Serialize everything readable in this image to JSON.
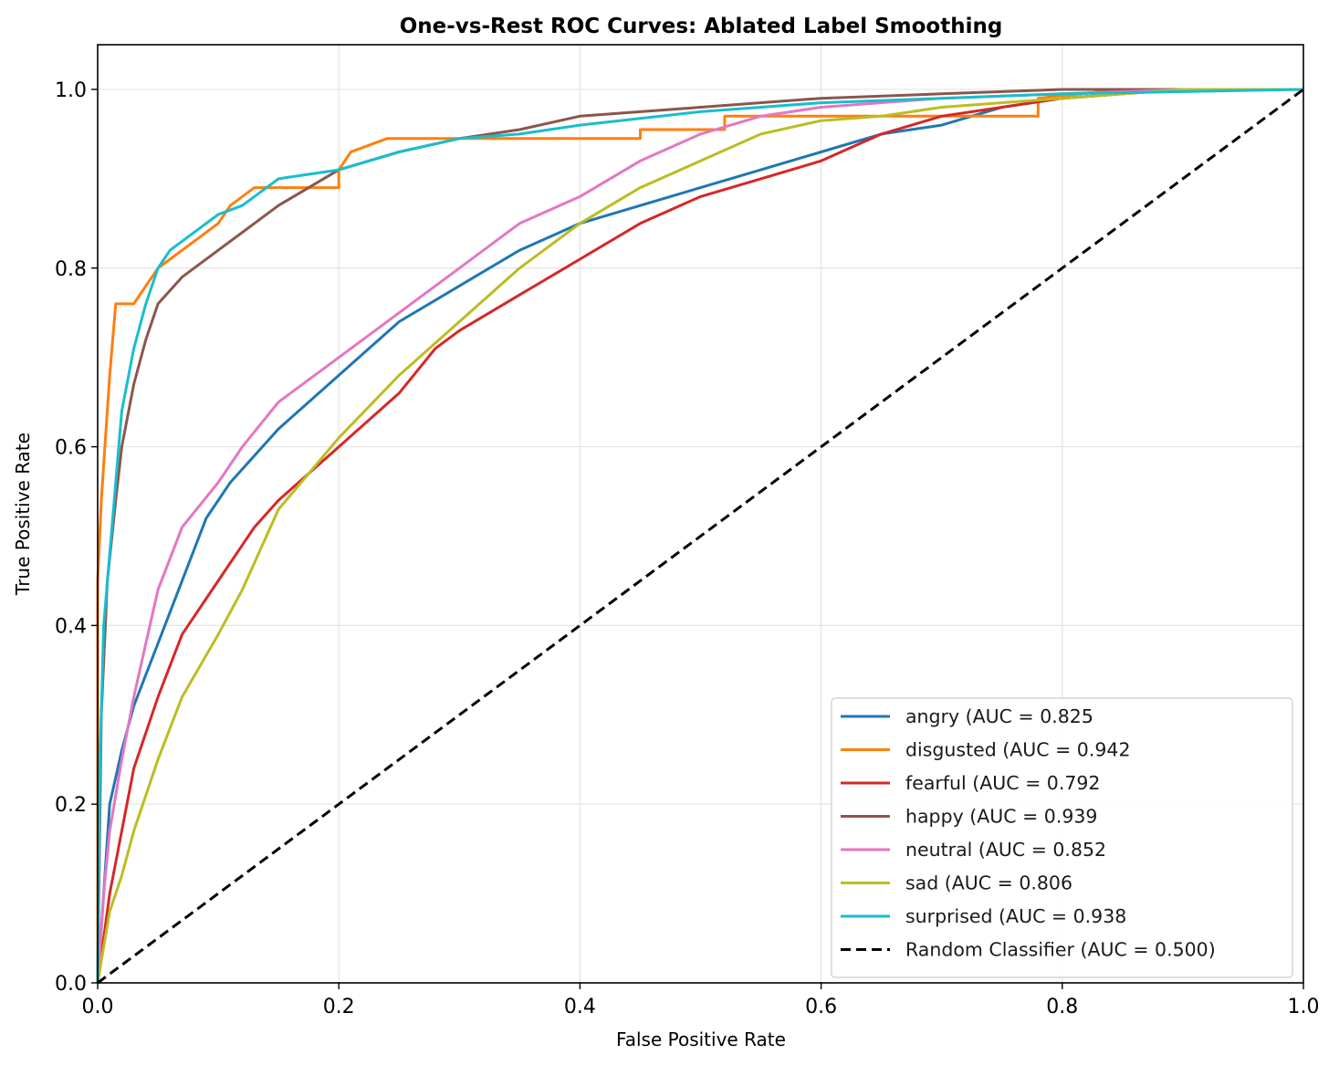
{
  "chart_data": {
    "type": "line",
    "title": "One-vs-Rest ROC Curves: Ablated Label Smoothing",
    "xlabel": "False Positive Rate",
    "ylabel": "True Positive Rate",
    "xlim": [
      0.0,
      1.0
    ],
    "ylim": [
      0.0,
      1.05
    ],
    "xticks": [
      "0.0",
      "0.2",
      "0.4",
      "0.6",
      "0.8",
      "1.0"
    ],
    "yticks": [
      "0.0",
      "0.2",
      "0.4",
      "0.6",
      "0.8",
      "1.0"
    ],
    "grid": true,
    "legend_position": "lower-right",
    "series": [
      {
        "name": "angry (AUC = 0.825",
        "color": "#1f77b4",
        "x": [
          0,
          0.005,
          0.01,
          0.02,
          0.03,
          0.05,
          0.07,
          0.09,
          0.11,
          0.13,
          0.15,
          0.2,
          0.25,
          0.3,
          0.35,
          0.4,
          0.45,
          0.5,
          0.55,
          0.6,
          0.65,
          0.7,
          0.75,
          0.8,
          0.85,
          0.9,
          1.0
        ],
        "y": [
          0,
          0.1,
          0.2,
          0.26,
          0.31,
          0.38,
          0.45,
          0.52,
          0.56,
          0.59,
          0.62,
          0.68,
          0.74,
          0.78,
          0.82,
          0.85,
          0.87,
          0.89,
          0.91,
          0.93,
          0.95,
          0.96,
          0.98,
          0.99,
          0.995,
          1.0,
          1.0
        ]
      },
      {
        "name": "disgusted (AUC = 0.942",
        "color": "#ff7f0e",
        "x": [
          0,
          0.0,
          0.003,
          0.006,
          0.01,
          0.015,
          0.03,
          0.035,
          0.04,
          0.05,
          0.06,
          0.07,
          0.08,
          0.09,
          0.1,
          0.11,
          0.12,
          0.13,
          0.2,
          0.2,
          0.21,
          0.24,
          0.3,
          0.45,
          0.45,
          0.52,
          0.52,
          0.65,
          0.72,
          0.78,
          0.78,
          0.85,
          1.0
        ],
        "y": [
          0,
          0.45,
          0.54,
          0.6,
          0.68,
          0.76,
          0.76,
          0.77,
          0.78,
          0.8,
          0.81,
          0.82,
          0.83,
          0.84,
          0.85,
          0.87,
          0.88,
          0.89,
          0.89,
          0.91,
          0.93,
          0.945,
          0.945,
          0.945,
          0.955,
          0.955,
          0.97,
          0.97,
          0.97,
          0.97,
          0.99,
          1.0,
          1.0
        ]
      },
      {
        "name": "fearful (AUC = 0.792",
        "color": "#d62728",
        "x": [
          0,
          0.005,
          0.01,
          0.02,
          0.03,
          0.05,
          0.07,
          0.1,
          0.13,
          0.15,
          0.2,
          0.25,
          0.28,
          0.3,
          0.35,
          0.4,
          0.45,
          0.5,
          0.55,
          0.6,
          0.65,
          0.7,
          0.75,
          0.8,
          0.85,
          0.9,
          1.0
        ],
        "y": [
          0,
          0.05,
          0.1,
          0.17,
          0.24,
          0.32,
          0.39,
          0.45,
          0.51,
          0.54,
          0.6,
          0.66,
          0.71,
          0.73,
          0.77,
          0.81,
          0.85,
          0.88,
          0.9,
          0.92,
          0.95,
          0.97,
          0.98,
          0.99,
          0.995,
          1.0,
          1.0
        ]
      },
      {
        "name": "happy (AUC = 0.939",
        "color": "#8c564b",
        "x": [
          0,
          0.003,
          0.008,
          0.015,
          0.02,
          0.03,
          0.04,
          0.05,
          0.07,
          0.1,
          0.13,
          0.15,
          0.2,
          0.25,
          0.3,
          0.35,
          0.4,
          0.5,
          0.6,
          0.7,
          0.8,
          1.0
        ],
        "y": [
          0,
          0.3,
          0.45,
          0.54,
          0.6,
          0.67,
          0.72,
          0.76,
          0.79,
          0.82,
          0.85,
          0.87,
          0.91,
          0.93,
          0.945,
          0.955,
          0.97,
          0.98,
          0.99,
          0.995,
          1.0,
          1.0
        ]
      },
      {
        "name": "neutral (AUC = 0.852",
        "color": "#e377c2",
        "x": [
          0,
          0.005,
          0.01,
          0.02,
          0.03,
          0.04,
          0.05,
          0.07,
          0.1,
          0.12,
          0.15,
          0.2,
          0.25,
          0.3,
          0.35,
          0.4,
          0.45,
          0.5,
          0.55,
          0.6,
          0.7,
          0.8,
          0.9,
          1.0
        ],
        "y": [
          0,
          0.1,
          0.17,
          0.25,
          0.32,
          0.38,
          0.44,
          0.51,
          0.56,
          0.6,
          0.65,
          0.7,
          0.75,
          0.8,
          0.85,
          0.88,
          0.92,
          0.95,
          0.97,
          0.98,
          0.99,
          0.995,
          1.0,
          1.0
        ]
      },
      {
        "name": "sad (AUC = 0.806",
        "color": "#bcbd22",
        "x": [
          0,
          0.005,
          0.01,
          0.02,
          0.03,
          0.05,
          0.07,
          0.1,
          0.12,
          0.14,
          0.15,
          0.2,
          0.25,
          0.3,
          0.35,
          0.4,
          0.45,
          0.5,
          0.55,
          0.6,
          0.65,
          0.7,
          0.8,
          0.9,
          1.0
        ],
        "y": [
          0,
          0.04,
          0.08,
          0.12,
          0.17,
          0.25,
          0.32,
          0.39,
          0.44,
          0.5,
          0.53,
          0.61,
          0.68,
          0.74,
          0.8,
          0.85,
          0.89,
          0.92,
          0.95,
          0.965,
          0.97,
          0.98,
          0.99,
          1.0,
          1.0
        ]
      },
      {
        "name": "surprised (AUC = 0.938",
        "color": "#17becf",
        "x": [
          0,
          0.002,
          0.005,
          0.01,
          0.015,
          0.02,
          0.03,
          0.04,
          0.05,
          0.06,
          0.08,
          0.1,
          0.12,
          0.15,
          0.2,
          0.25,
          0.3,
          0.35,
          0.4,
          0.5,
          0.6,
          0.7,
          0.8,
          1.0
        ],
        "y": [
          0,
          0.25,
          0.4,
          0.48,
          0.56,
          0.64,
          0.71,
          0.76,
          0.8,
          0.82,
          0.84,
          0.86,
          0.87,
          0.9,
          0.91,
          0.93,
          0.945,
          0.95,
          0.96,
          0.975,
          0.985,
          0.99,
          0.995,
          1.0
        ]
      }
    ],
    "reference_line": {
      "name": "Random Classifier (AUC = 0.500)",
      "color": "#000000",
      "x": [
        0,
        1
      ],
      "y": [
        0,
        1
      ]
    }
  }
}
